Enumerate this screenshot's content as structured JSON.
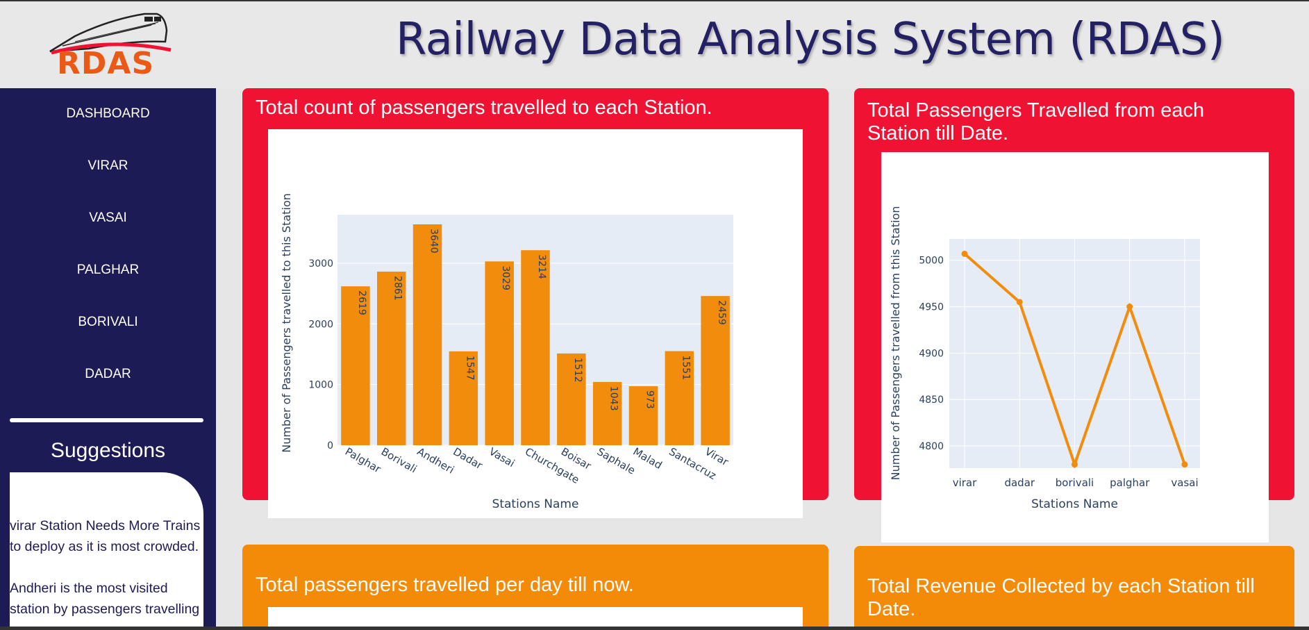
{
  "header": {
    "title": "Railway Data Analysis System (RDAS)",
    "logo_text": "RDAS"
  },
  "sidebar": {
    "items": [
      {
        "label": "DASHBOARD"
      },
      {
        "label": "VIRAR"
      },
      {
        "label": "VASAI"
      },
      {
        "label": "PALGHAR"
      },
      {
        "label": "BORIVALI"
      },
      {
        "label": "DADAR"
      }
    ],
    "suggestions_title": "Suggestions",
    "suggestions": [
      "virar Station Needs More Trains to deploy as it is most crowded.",
      "Andheri is the most visited station by passengers travelling"
    ]
  },
  "cards": {
    "c1_title": "Total count of passengers travelled to each Station.",
    "c2_title": "Total Passengers Travelled from each Station till Date.",
    "c3_title": "Total passengers travelled per day till now.",
    "c4_title": "Total Revenue Collected by each Station till Date."
  },
  "colors": {
    "red": "#ef1233",
    "orange": "#f38a08",
    "navy": "#1c1b55",
    "plot_bg": "#e5ecf6",
    "bar": "#f28c0c"
  },
  "chart_data": [
    {
      "type": "bar",
      "categories": [
        "Palghar",
        "Borivali",
        "Andheri",
        "Dadar",
        "Vasai",
        "Churchgate",
        "Boisar",
        "Saphale",
        "Malad",
        "Santacruz",
        "Virar"
      ],
      "values": [
        2619,
        2861,
        3640,
        1547,
        3029,
        3214,
        1512,
        1043,
        973,
        1551,
        2459
      ],
      "xlabel": "Stations Name",
      "ylabel": "Number of Passengers travelled to this Station",
      "ylim": [
        0,
        3800
      ],
      "yticks": [
        0,
        1000,
        2000,
        3000
      ],
      "grid": true
    },
    {
      "type": "line",
      "x": [
        "virar",
        "dadar",
        "borivali",
        "palghar",
        "vasai"
      ],
      "values": [
        5007,
        4955,
        4780,
        4950,
        4780
      ],
      "xlabel": "Stations Name",
      "ylabel": "Number of Passengers travelled from this Station",
      "ylim": [
        4776,
        5023
      ],
      "yticks": [
        4800,
        4850,
        4900,
        4950,
        5000
      ],
      "grid": true
    }
  ]
}
